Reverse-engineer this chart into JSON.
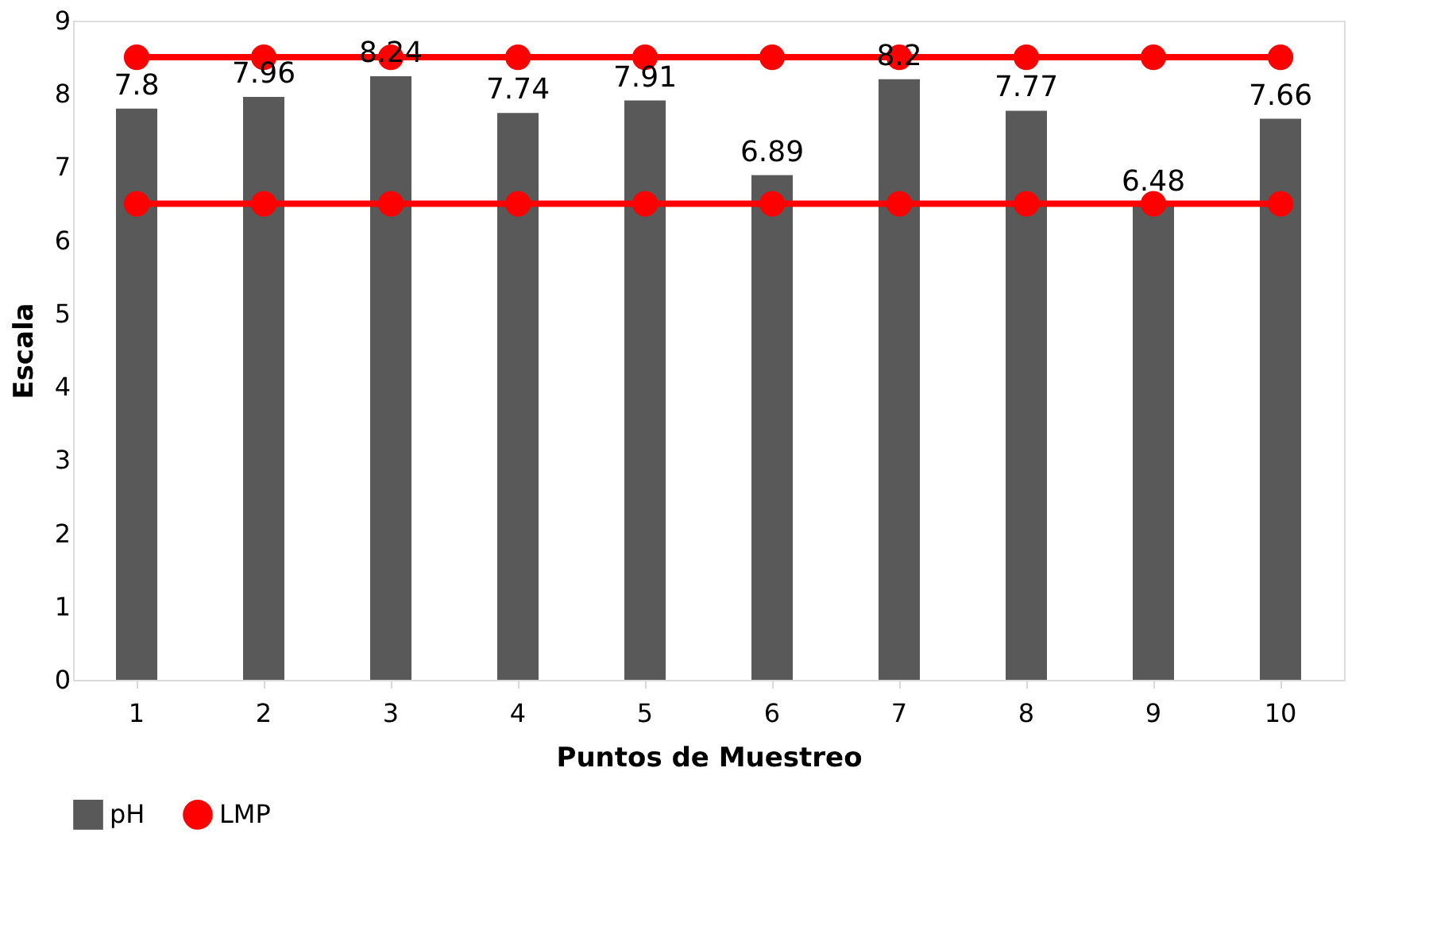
{
  "chart_data": {
    "type": "bar",
    "xlabel": "Puntos de Muestreo",
    "ylabel": "Escala",
    "categories": [
      "1",
      "2",
      "3",
      "4",
      "5",
      "6",
      "7",
      "8",
      "9",
      "10"
    ],
    "series": [
      {
        "name": "pH",
        "color": "#595959",
        "values": [
          7.8,
          7.96,
          8.24,
          7.74,
          7.91,
          6.89,
          8.2,
          7.77,
          6.48,
          7.66
        ],
        "data_labels": true
      },
      {
        "name": "LMP",
        "type": "line",
        "color": "#ff0000",
        "marker": "circle",
        "line_style": "solid",
        "values": [
          8.5,
          8.5,
          8.5,
          8.5,
          8.5,
          8.5,
          8.5,
          8.5,
          8.5,
          8.5
        ]
      },
      {
        "type": "line",
        "color": "#ff0000",
        "marker": "circle",
        "line_style": "solid",
        "values": [
          6.5,
          6.5,
          6.5,
          6.5,
          6.5,
          6.5,
          6.5,
          6.5,
          6.5,
          6.5
        ]
      }
    ],
    "ylim": [
      0,
      9
    ],
    "yticks": [
      0,
      1,
      2,
      3,
      4,
      5,
      6,
      7,
      8,
      9
    ],
    "grid": false,
    "legend": "bottom"
  }
}
